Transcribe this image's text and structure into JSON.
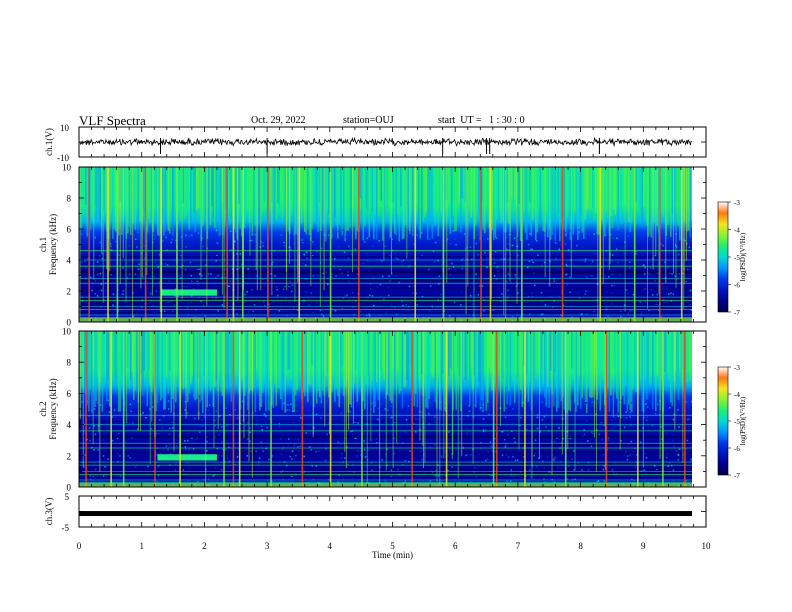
{
  "header": {
    "title": "VLF Spectra",
    "date": "Oct. 29, 2022",
    "station": "station=OUJ",
    "start": "start  UT =   1 : 30 : 0"
  },
  "chart_data": [
    {
      "type": "line",
      "panel": "ch1-waveform",
      "ylabel": "ch.1(V)",
      "ylim": [
        -10,
        10
      ],
      "ytick_labels": [
        "10",
        "-10"
      ],
      "x_range_min": [
        0,
        9.83
      ],
      "baseline_value": 0,
      "spike_times_min": [
        1.3,
        3.0,
        5.8,
        6.5,
        6.55,
        8.3
      ],
      "color": "#000000"
    },
    {
      "type": "heatmap",
      "panel": "ch1-spectrogram",
      "ylabel_top": "ch.1",
      "ylabel": "Frequency (kHz)",
      "ylim": [
        0,
        10
      ],
      "yticks": [
        0,
        2,
        4,
        6,
        8,
        10
      ],
      "x_range_min": [
        0,
        9.83
      ],
      "band_edges_khz": {
        "dark_low_top": 6.0,
        "dark_high_top": 7.0
      },
      "tone": {
        "x_min": [
          1.3,
          2.2
        ],
        "freq_khz": 1.9
      },
      "strong_lines_min": [
        0.15,
        0.45,
        0.6,
        1.05,
        1.3,
        1.55,
        2.35,
        2.45,
        2.6,
        3.0,
        3.5,
        4.0,
        4.45,
        5.35,
        5.8,
        6.4,
        6.55,
        7.05,
        7.7,
        8.3,
        8.85,
        9.25,
        9.6
      ],
      "colorbar": {
        "label": "log(PSD)(V²/Hz)",
        "range": [
          -7,
          -3
        ],
        "ticks": [
          "-3",
          "-4",
          "-5",
          "-6",
          "-7"
        ]
      }
    },
    {
      "type": "heatmap",
      "panel": "ch2-spectrogram",
      "ylabel_top": "ch.2",
      "ylabel": "Frequency (kHz)",
      "ylim": [
        0,
        10
      ],
      "yticks": [
        0,
        2,
        4,
        6,
        8,
        10
      ],
      "x_range_min": [
        0,
        9.83
      ],
      "band_edges_khz": {
        "dark_low_top": 5.6,
        "dark_high_top": 6.8
      },
      "tone": {
        "x_min": [
          1.25,
          2.2
        ],
        "freq_khz": 1.9
      },
      "strong_lines_min": [
        0.1,
        0.5,
        0.7,
        1.2,
        1.6,
        2.3,
        2.45,
        2.55,
        3.05,
        3.55,
        4.0,
        4.5,
        5.3,
        5.85,
        6.6,
        6.65,
        7.1,
        7.75,
        8.4,
        8.9,
        9.3,
        9.65
      ],
      "colorbar": {
        "label": "log(PSD)(V²/Hz)",
        "range": [
          -7,
          -3
        ],
        "ticks": [
          "-3",
          "-4",
          "-5",
          "-6",
          "-7"
        ]
      }
    },
    {
      "type": "line",
      "panel": "ch3-waveform",
      "ylabel": "ch.3(V)",
      "ylim": [
        -5,
        5
      ],
      "ytick_labels": [
        "5",
        "-5"
      ],
      "x_range_min": [
        0,
        9.83
      ],
      "baseline_value": -0.5,
      "color": "#000000",
      "xlabel": "Time (min)",
      "xlim": [
        0,
        10
      ],
      "xticks": [
        0,
        1,
        2,
        3,
        4,
        5,
        6,
        7,
        8,
        9,
        10
      ]
    }
  ]
}
